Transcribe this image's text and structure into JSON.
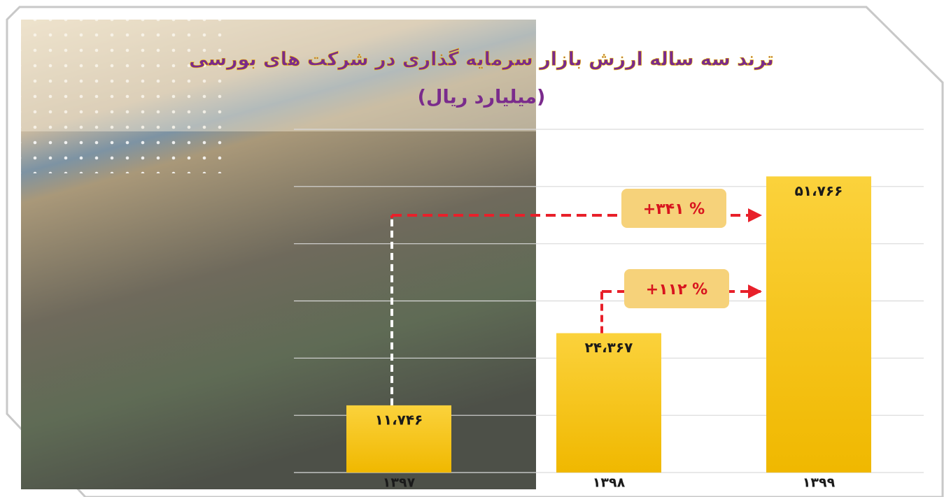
{
  "chart_data": {
    "type": "bar",
    "title": "ترند سه ساله ارزش بازار سرمایه گذاری در شرکت های بورسی",
    "subtitle": "(میلیارد ریال)",
    "categories": [
      "۱۳۹۷",
      "۱۳۹۸",
      "۱۳۹۹"
    ],
    "values": [
      11746,
      24367,
      51766
    ],
    "value_labels": [
      "۱۱،۷۴۶",
      "۲۴،۳۶۷",
      "۵۱،۷۶۶"
    ],
    "color": "#f7c325",
    "ylim": [
      0,
      60000
    ],
    "yticks": [
      0,
      10000,
      20000,
      30000,
      40000,
      50000,
      60000
    ],
    "grid": true,
    "annotations": [
      "+۳۴۱ %",
      "+۱۱۲ %"
    ]
  }
}
